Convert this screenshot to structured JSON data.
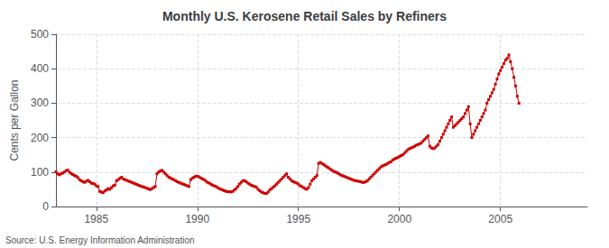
{
  "chart_data": {
    "type": "line",
    "title": "Monthly U.S. Kerosene Retail Sales by Refiners",
    "ylabel": "Cents per Gallon",
    "source": "Source: U.S. Energy Information Administration",
    "color": "#cc0000",
    "marker": "square",
    "line_style": "solid",
    "grid": true,
    "xlim": [
      1983.0,
      2009.3
    ],
    "xticks": [
      1985,
      1990,
      1995,
      2000,
      2005
    ],
    "ylim": [
      0,
      500
    ],
    "yticks": [
      0,
      100,
      200,
      300,
      400,
      500
    ],
    "x": [
      1983.0,
      1983.0833333333333,
      1983.1666666666667,
      1983.25,
      1983.3333333333333,
      1983.4166666666667,
      1983.5,
      1983.5833333333333,
      1983.6666666666667,
      1983.75,
      1983.8333333333333,
      1983.9166666666667,
      1984.0,
      1984.0833333333333,
      1984.1666666666667,
      1984.25,
      1984.3333333333333,
      1984.4166666666667,
      1984.5,
      1984.5833333333333,
      1984.6666666666667,
      1984.75,
      1984.8333333333333,
      1984.9166666666667,
      1985.0,
      1985.0833333333333,
      1985.1666666666667,
      1985.25,
      1985.3333333333333,
      1985.4166666666667,
      1985.5,
      1985.5833333333333,
      1985.6666666666667,
      1985.75,
      1985.8333333333333,
      1985.9166666666667,
      1986.0,
      1986.0833333333333,
      1986.1666666666667,
      1986.25,
      1986.3333333333333,
      1986.4166666666667,
      1986.5,
      1986.5833333333333,
      1986.6666666666667,
      1986.75,
      1986.8333333333333,
      1986.9166666666667,
      1987.0,
      1987.0833333333333,
      1987.1666666666667,
      1987.25,
      1987.3333333333333,
      1987.4166666666667,
      1987.5,
      1987.5833333333333,
      1987.6666666666667,
      1987.75,
      1987.8333333333333,
      1987.9166666666667,
      1988.0,
      1988.0833333333333,
      1988.1666666666667,
      1988.25,
      1988.3333333333333,
      1988.4166666666667,
      1988.5,
      1988.5833333333333,
      1988.6666666666667,
      1988.75,
      1988.8333333333333,
      1988.9166666666667,
      1989.0,
      1989.0833333333333,
      1989.1666666666667,
      1989.25,
      1989.3333333333333,
      1989.4166666666667,
      1989.5,
      1989.5833333333333,
      1989.6666666666667,
      1989.75,
      1989.8333333333333,
      1989.9166666666667,
      1990.0,
      1990.0833333333333,
      1990.1666666666667,
      1990.25,
      1990.3333333333333,
      1990.4166666666667,
      1990.5,
      1990.5833333333333,
      1990.6666666666667,
      1990.75,
      1990.8333333333333,
      1990.9166666666667,
      1991.0,
      1991.0833333333333,
      1991.1666666666667,
      1991.25,
      1991.3333333333333,
      1991.4166666666667,
      1991.5,
      1991.5833333333333,
      1991.6666666666667,
      1991.75,
      1991.8333333333333,
      1991.9166666666667,
      1992.0,
      1992.0833333333333,
      1992.1666666666667,
      1992.25,
      1992.3333333333333,
      1992.4166666666667,
      1992.5,
      1992.5833333333333,
      1992.6666666666667,
      1992.75,
      1992.8333333333333,
      1992.9166666666667,
      1993.0,
      1993.0833333333333,
      1993.1666666666667,
      1993.25,
      1993.3333333333333,
      1993.4166666666667,
      1993.5,
      1993.5833333333333,
      1993.6666666666667,
      1993.75,
      1993.8333333333333,
      1993.9166666666667,
      1994.0,
      1994.0833333333333,
      1994.1666666666667,
      1994.25,
      1994.3333333333333,
      1994.4166666666667,
      1994.5,
      1994.5833333333333,
      1994.6666666666667,
      1994.75,
      1994.8333333333333,
      1994.9166666666667,
      1995.0,
      1995.0833333333333,
      1995.1666666666667,
      1995.25,
      1995.3333333333333,
      1995.4166666666667,
      1995.5,
      1995.5833333333333,
      1995.6666666666667,
      1995.75,
      1995.8333333333333,
      1995.9166666666667,
      1996.0,
      1996.0833333333333,
      1996.1666666666667,
      1996.25,
      1996.3333333333333,
      1996.4166666666667,
      1996.5,
      1996.5833333333333,
      1996.6666666666667,
      1996.75,
      1996.8333333333333,
      1996.9166666666667,
      1997.0,
      1997.0833333333333,
      1997.1666666666667,
      1997.25,
      1997.3333333333333,
      1997.4166666666667,
      1997.5,
      1997.5833333333333,
      1997.6666666666667,
      1997.75,
      1997.8333333333333,
      1997.9166666666667,
      1998.0,
      1998.0833333333333,
      1998.1666666666667,
      1998.25,
      1998.3333333333333,
      1998.4166666666667,
      1998.5,
      1998.5833333333333,
      1998.6666666666667,
      1998.75,
      1998.8333333333333,
      1998.9166666666667,
      1999.0,
      1999.0833333333333,
      1999.1666666666667,
      1999.25,
      1999.3333333333333,
      1999.4166666666667,
      1999.5,
      1999.5833333333333,
      1999.6666666666667,
      1999.75,
      1999.8333333333333,
      1999.9166666666667,
      2000.0,
      2000.0833333333333,
      2000.1666666666667,
      2000.25,
      2000.3333333333333,
      2000.4166666666667,
      2000.5,
      2000.5833333333333,
      2000.6666666666667,
      2000.75,
      2000.8333333333333,
      2000.9166666666667,
      2001.0,
      2001.0833333333333,
      2001.1666666666667,
      2001.25,
      2001.3333333333333,
      2001.4166666666667,
      2001.5,
      2001.5833333333333,
      2001.6666666666667,
      2001.75,
      2001.8333333333333,
      2001.9166666666667,
      2002.0,
      2002.0833333333333,
      2002.1666666666667,
      2002.25,
      2002.3333333333333,
      2002.4166666666667,
      2002.5,
      2002.5833333333333,
      2002.6666666666667,
      2002.75,
      2002.8333333333333,
      2002.9166666666667,
      2003.0,
      2003.0833333333333,
      2003.1666666666667,
      2003.25,
      2003.3333333333333,
      2003.4166666666667,
      2003.5,
      2003.5833333333333,
      2003.6666666666667,
      2003.75,
      2003.8333333333333,
      2003.9166666666667,
      2004.0,
      2004.0833333333333,
      2004.1666666666667,
      2004.25,
      2004.3333333333333,
      2004.4166666666667,
      2004.5,
      2004.5833333333333,
      2004.6666666666667,
      2004.75,
      2004.8333333333333,
      2004.9166666666667,
      2005.0,
      2005.0833333333333,
      2005.1666666666667,
      2005.25,
      2005.3333333333333,
      2005.4166666666667,
      2005.5,
      2005.5833333333333,
      2005.6666666666667,
      2005.75,
      2005.8333333333333,
      2005.9166666666667
    ],
    "values": [
      101,
      95,
      92,
      95,
      97,
      100,
      104,
      106,
      100,
      96,
      93,
      90,
      88,
      84,
      78,
      75,
      72,
      70,
      73,
      76,
      72,
      68,
      67,
      65,
      60,
      58,
      44,
      42,
      40,
      45,
      48,
      52,
      50,
      55,
      60,
      62,
      75,
      78,
      82,
      85,
      80,
      78,
      76,
      74,
      72,
      70,
      68,
      66,
      64,
      62,
      60,
      58,
      57,
      55,
      53,
      51,
      49,
      52,
      55,
      58,
      95,
      100,
      103,
      105,
      100,
      95,
      90,
      85,
      83,
      80,
      78,
      75,
      72,
      70,
      68,
      66,
      64,
      62,
      60,
      58,
      78,
      82,
      85,
      88,
      88,
      86,
      83,
      80,
      78,
      74,
      70,
      68,
      65,
      62,
      60,
      58,
      55,
      52,
      50,
      48,
      46,
      44,
      43,
      43,
      42,
      44,
      48,
      52,
      58,
      65,
      70,
      75,
      75,
      72,
      68,
      65,
      62,
      60,
      58,
      56,
      50,
      46,
      42,
      40,
      38,
      38,
      42,
      48,
      52,
      56,
      60,
      65,
      70,
      75,
      80,
      85,
      90,
      95,
      85,
      80,
      75,
      72,
      70,
      68,
      65,
      60,
      58,
      55,
      52,
      50,
      55,
      65,
      75,
      80,
      85,
      90,
      125,
      128,
      125,
      122,
      118,
      115,
      112,
      108,
      105,
      102,
      100,
      98,
      95,
      92,
      90,
      88,
      86,
      84,
      82,
      80,
      78,
      76,
      75,
      74,
      73,
      72,
      70,
      70,
      72,
      75,
      80,
      85,
      90,
      95,
      100,
      105,
      110,
      115,
      118,
      120,
      122,
      125,
      128,
      130,
      135,
      138,
      140,
      142,
      145,
      148,
      150,
      155,
      160,
      165,
      168,
      170,
      172,
      175,
      178,
      180,
      182,
      185,
      190,
      195,
      200,
      205,
      175,
      170,
      168,
      170,
      175,
      180,
      190,
      200,
      210,
      220,
      230,
      240,
      250,
      260,
      230,
      235,
      240,
      245,
      250,
      255,
      260,
      270,
      280,
      290,
      240,
      200,
      210,
      220,
      230,
      240,
      250,
      260,
      270,
      280,
      300,
      310,
      320,
      330,
      340,
      355,
      370,
      385,
      395,
      405,
      415,
      425,
      430,
      440,
      420,
      400,
      375,
      350,
      320,
      300
    ]
  }
}
